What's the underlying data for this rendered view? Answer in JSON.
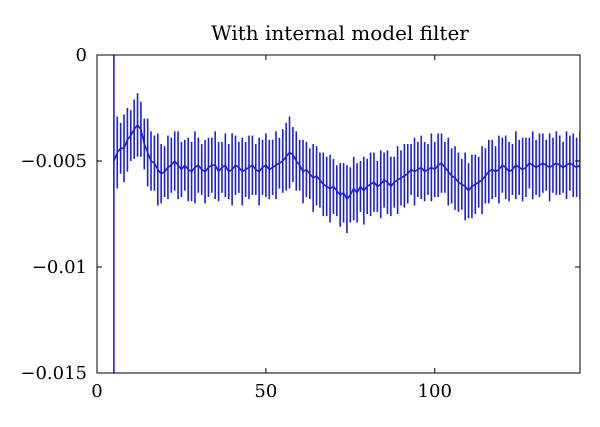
{
  "chart_data": {
    "type": "line",
    "title": "With internal model filter",
    "xlabel": "",
    "ylabel": "",
    "xlim": [
      0,
      143
    ],
    "ylim": [
      -0.015,
      0
    ],
    "xticks": [
      0,
      50,
      100
    ],
    "xtick_labels": [
      "0",
      "50",
      "100"
    ],
    "yticks": [
      0,
      -0.005,
      -0.01,
      -0.015
    ],
    "ytick_labels": [
      "0",
      "−0.005",
      "−0.01",
      "−0.015"
    ],
    "grid": false,
    "legend": "none",
    "series": [
      {
        "color": "#1f1fd6",
        "style": "errorbar",
        "x": [
          5,
          6,
          7,
          8,
          9,
          10,
          11,
          12,
          13,
          14,
          15,
          16,
          17,
          18,
          19,
          20,
          21,
          22,
          23,
          24,
          25,
          26,
          27,
          28,
          29,
          30,
          31,
          32,
          33,
          34,
          35,
          36,
          37,
          38,
          39,
          40,
          41,
          42,
          43,
          44,
          45,
          46,
          47,
          48,
          49,
          50,
          51,
          52,
          53,
          54,
          55,
          56,
          57,
          58,
          59,
          60,
          61,
          62,
          63,
          64,
          65,
          66,
          67,
          68,
          69,
          70,
          71,
          72,
          73,
          74,
          75,
          76,
          77,
          78,
          79,
          80,
          81,
          82,
          83,
          84,
          85,
          86,
          87,
          88,
          89,
          90,
          91,
          92,
          93,
          94,
          95,
          96,
          97,
          98,
          99,
          100,
          101,
          102,
          103,
          104,
          105,
          106,
          107,
          108,
          109,
          110,
          111,
          112,
          113,
          114,
          115,
          116,
          117,
          118,
          119,
          120,
          121,
          122,
          123,
          124,
          125,
          126,
          127,
          128,
          129,
          130,
          131,
          132,
          133,
          134,
          135,
          136,
          137,
          138,
          139,
          140,
          141,
          142,
          143
        ],
        "y": [
          -0.005,
          -0.0046,
          -0.0044,
          -0.0044,
          -0.004,
          -0.0038,
          -0.0035,
          -0.0033,
          -0.0035,
          -0.0042,
          -0.0046,
          -0.005,
          -0.0051,
          -0.0054,
          -0.0056,
          -0.0055,
          -0.0053,
          -0.0052,
          -0.005,
          -0.0052,
          -0.0054,
          -0.0052,
          -0.0054,
          -0.0055,
          -0.0053,
          -0.0052,
          -0.0054,
          -0.0055,
          -0.0053,
          -0.0052,
          -0.0052,
          -0.0055,
          -0.0053,
          -0.0052,
          -0.0055,
          -0.0054,
          -0.0052,
          -0.0053,
          -0.0055,
          -0.0054,
          -0.0053,
          -0.0052,
          -0.0054,
          -0.0055,
          -0.0053,
          -0.0052,
          -0.0054,
          -0.0053,
          -0.0052,
          -0.0051,
          -0.005,
          -0.0048,
          -0.0046,
          -0.0047,
          -0.005,
          -0.0052,
          -0.0055,
          -0.0054,
          -0.0056,
          -0.0058,
          -0.0057,
          -0.0059,
          -0.0061,
          -0.0062,
          -0.0063,
          -0.0062,
          -0.0064,
          -0.0066,
          -0.0065,
          -0.0068,
          -0.0066,
          -0.0063,
          -0.0065,
          -0.0062,
          -0.0064,
          -0.0062,
          -0.0061,
          -0.006,
          -0.0062,
          -0.0061,
          -0.0059,
          -0.006,
          -0.0062,
          -0.006,
          -0.0059,
          -0.0058,
          -0.0057,
          -0.0056,
          -0.0054,
          -0.0055,
          -0.0054,
          -0.0053,
          -0.0055,
          -0.0054,
          -0.0053,
          -0.0054,
          -0.0052,
          -0.0051,
          -0.0053,
          -0.0055,
          -0.0057,
          -0.0058,
          -0.006,
          -0.0061,
          -0.0062,
          -0.0064,
          -0.0062,
          -0.0061,
          -0.006,
          -0.0059,
          -0.0057,
          -0.0055,
          -0.0054,
          -0.0055,
          -0.0054,
          -0.0052,
          -0.0053,
          -0.0055,
          -0.0054,
          -0.0052,
          -0.0053,
          -0.0054,
          -0.0053,
          -0.0051,
          -0.0052,
          -0.0053,
          -0.0052,
          -0.0051,
          -0.0052,
          -0.0053,
          -0.0052,
          -0.0051,
          -0.0052,
          -0.0053,
          -0.0052,
          -0.0051,
          -0.0052,
          -0.0053,
          -0.0052
        ],
        "err": [
          0.011,
          0.0017,
          0.0012,
          0.0016,
          0.0015,
          0.0012,
          0.0014,
          0.0015,
          0.0013,
          0.0012,
          0.0016,
          0.0014,
          0.0013,
          0.0017,
          0.0014,
          0.0012,
          0.0015,
          0.0013,
          0.0014,
          0.0016,
          0.0013,
          0.0012,
          0.0015,
          0.0014,
          0.0017,
          0.0013,
          0.0012,
          0.0015,
          0.0014,
          0.0013,
          0.0016,
          0.0014,
          0.0012,
          0.0015,
          0.0013,
          0.0017,
          0.0014,
          0.0012,
          0.0016,
          0.0013,
          0.0015,
          0.0014,
          0.0012,
          0.0016,
          0.0013,
          0.0015,
          0.0014,
          0.0013,
          0.0016,
          0.0012,
          0.0015,
          0.0016,
          0.0017,
          0.0013,
          0.0014,
          0.0012,
          0.0015,
          0.0013,
          0.0012,
          0.0016,
          0.0014,
          0.0013,
          0.0015,
          0.0014,
          0.0016,
          0.0013,
          0.0012,
          0.0015,
          0.0014,
          0.0016,
          0.0013,
          0.0015,
          0.0014,
          0.0012,
          0.0016,
          0.0013,
          0.0015,
          0.0014,
          0.0012,
          0.0016,
          0.0013,
          0.0015,
          0.0014,
          0.0012,
          0.0016,
          0.0013,
          0.0015,
          0.0014,
          0.0012,
          0.0016,
          0.0013,
          0.0015,
          0.0014,
          0.0012,
          0.0016,
          0.0013,
          0.0015,
          0.0014,
          0.0012,
          0.0016,
          0.0013,
          0.0015,
          0.0014,
          0.0012,
          0.0016,
          0.0013,
          0.0015,
          0.0014,
          0.0012,
          0.0016,
          0.0013,
          0.0015,
          0.0014,
          0.0012,
          0.0016,
          0.0013,
          0.0015,
          0.0014,
          0.0012,
          0.0016,
          0.0013,
          0.0015,
          0.0014,
          0.0012,
          0.0016,
          0.0013,
          0.0015,
          0.0014,
          0.0012,
          0.0016,
          0.0013,
          0.0015,
          0.0014,
          0.0012,
          0.0016,
          0.0013,
          0.0015,
          0.0014,
          0.0016
        ]
      }
    ]
  }
}
